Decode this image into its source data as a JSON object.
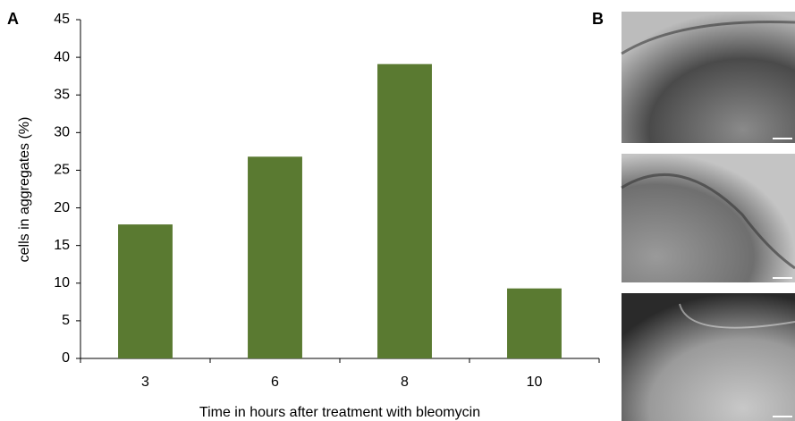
{
  "panel_labels": [
    "A",
    "B"
  ],
  "chart_data": {
    "type": "bar",
    "x_label": "Time in hours after treatment with bleomycin",
    "y_label": "cells in aggregates (%)",
    "categories": [
      "3",
      "6",
      "8",
      "10"
    ],
    "values": [
      17.8,
      26.8,
      39.1,
      9.3
    ],
    "color": "#5a7a31",
    "ylim": [
      0,
      45
    ],
    "yticks": [
      0,
      5,
      10,
      15,
      20,
      25,
      30,
      35,
      40,
      45
    ],
    "grid": false
  }
}
